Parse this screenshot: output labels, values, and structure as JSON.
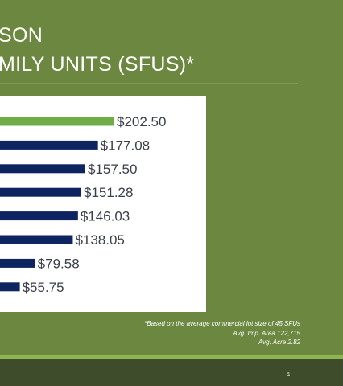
{
  "slide": {
    "title_line1": "SON",
    "title_line2": "MILY UNITS (SFUS)*",
    "footnote_line1": "*Based on the average commercial lot size of 45 SFUs",
    "footnote_line2": "Avg. Imp. Area 122,715",
    "footnote_line3": "Avg. Acre 2.82",
    "page_number": "4"
  },
  "colors": {
    "background": "#6b8740",
    "highlight_bar": "#70ad47",
    "bar": "#0d2461",
    "band_light": "#8cb44f",
    "band_dark": "#3e4c2b"
  },
  "chart_data": {
    "type": "bar",
    "orientation": "horizontal",
    "values": [
      202.5,
      177.08,
      157.5,
      151.28,
      146.03,
      138.05,
      79.58,
      55.75
    ],
    "labels": [
      "$202.50",
      "$177.08",
      "$157.50",
      "$151.28",
      "$146.03",
      "$138.05",
      "$79.58",
      "$55.75"
    ],
    "highlight_index": 0,
    "grid": false,
    "legend": "none"
  }
}
